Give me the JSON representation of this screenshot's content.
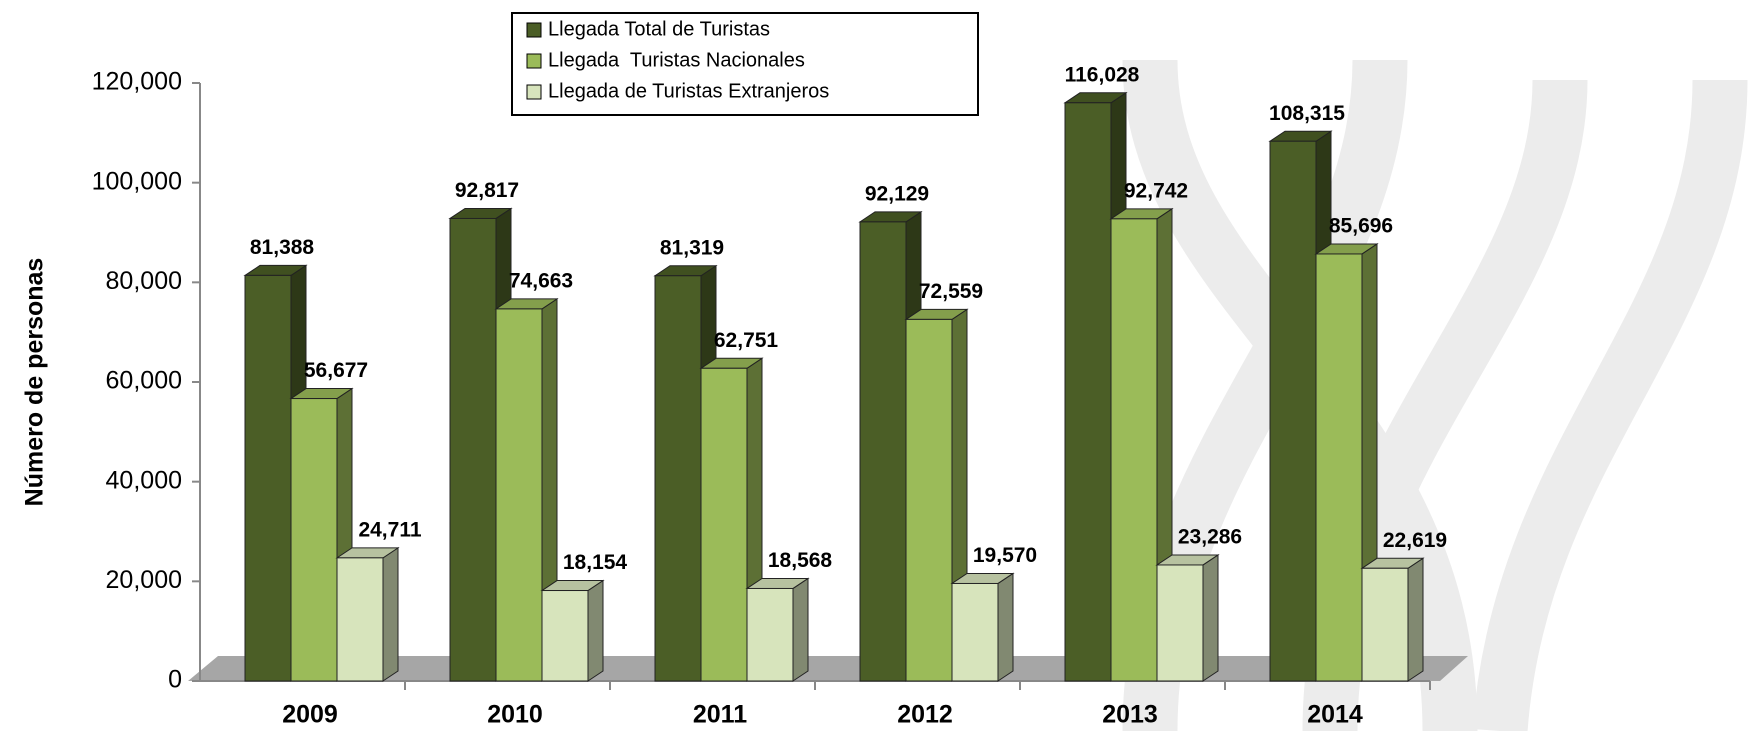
{
  "chart_data": {
    "type": "bar3d",
    "y_label": "Número de personas",
    "categories": [
      "2009",
      "2010",
      "2011",
      "2012",
      "2013",
      "2014"
    ],
    "series": [
      {
        "name": "Llegada Total de Turistas",
        "color": "#4b5e26",
        "values": [
          81388,
          92817,
          81319,
          92129,
          116028,
          108315
        ],
        "value_labels": [
          "81,388",
          "92,817",
          "81,319",
          "92,129",
          "116,028",
          "108,315"
        ]
      },
      {
        "name": "Llegada  Turistas Nacionales",
        "color": "#9bbb59",
        "values": [
          56677,
          74663,
          62751,
          72559,
          92742,
          85696
        ],
        "value_labels": [
          "56,677",
          "74,663",
          "62,751",
          "72,559",
          "92,742",
          "85,696"
        ]
      },
      {
        "name": "Llegada de Turistas Extranjeros",
        "color": "#d7e4bc",
        "values": [
          24711,
          18154,
          18568,
          19570,
          23286,
          22619
        ],
        "value_labels": [
          "24,711",
          "18,154",
          "18,568",
          "19,570",
          "23,286",
          "22,619"
        ]
      }
    ],
    "ylim": [
      0,
      120000
    ],
    "yticks": [
      0,
      {
        "value": 20000,
        "label": "20,000"
      },
      {
        "value": 40000,
        "label": "40,000"
      },
      {
        "value": 60000,
        "label": "60,000"
      },
      {
        "value": 80000,
        "label": "80,000"
      },
      {
        "value": 100000,
        "label": "100,000"
      },
      {
        "value": 120000,
        "label": "120,000"
      }
    ]
  }
}
